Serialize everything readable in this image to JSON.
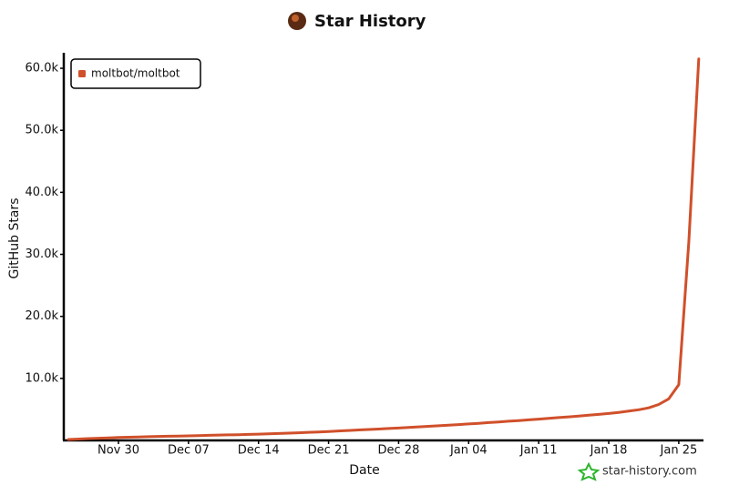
{
  "chart_data": {
    "type": "line",
    "title": "Star History",
    "watermark": "star-history.com",
    "x_label": "Date",
    "y_label": "GitHub Stars",
    "x": [
      "Nov 25",
      "Nov 26",
      "Nov 27",
      "Nov 28",
      "Nov 29",
      "Nov 30",
      "Dec 01",
      "Dec 02",
      "Dec 03",
      "Dec 04",
      "Dec 05",
      "Dec 06",
      "Dec 07",
      "Dec 08",
      "Dec 09",
      "Dec 10",
      "Dec 11",
      "Dec 12",
      "Dec 13",
      "Dec 14",
      "Dec 15",
      "Dec 16",
      "Dec 17",
      "Dec 18",
      "Dec 19",
      "Dec 20",
      "Dec 21",
      "Dec 22",
      "Dec 23",
      "Dec 24",
      "Dec 25",
      "Dec 26",
      "Dec 27",
      "Dec 28",
      "Dec 29",
      "Dec 30",
      "Dec 31",
      "Jan 01",
      "Jan 02",
      "Jan 03",
      "Jan 04",
      "Jan 05",
      "Jan 06",
      "Jan 07",
      "Jan 08",
      "Jan 09",
      "Jan 10",
      "Jan 11",
      "Jan 12",
      "Jan 13",
      "Jan 14",
      "Jan 15",
      "Jan 16",
      "Jan 17",
      "Jan 18",
      "Jan 19",
      "Jan 20",
      "Jan 21",
      "Jan 22",
      "Jan 23",
      "Jan 24",
      "Jan 25",
      "Jan 26",
      "Jan 27"
    ],
    "series": [
      {
        "name": "moltbot/moltbot",
        "color": "#d0502b",
        "values": [
          150,
          220,
          290,
          350,
          410,
          470,
          520,
          560,
          600,
          640,
          680,
          710,
          740,
          780,
          820,
          860,
          900,
          930,
          970,
          1010,
          1060,
          1110,
          1170,
          1230,
          1300,
          1370,
          1440,
          1520,
          1600,
          1680,
          1760,
          1840,
          1920,
          2000,
          2090,
          2180,
          2270,
          2360,
          2460,
          2560,
          2660,
          2760,
          2870,
          2980,
          3090,
          3200,
          3320,
          3440,
          3560,
          3680,
          3800,
          3930,
          4060,
          4200,
          4350,
          4520,
          4720,
          4950,
          5250,
          5800,
          6700,
          9000,
          32000,
          61500
        ]
      }
    ],
    "xticks": [
      "Nov 30",
      "Dec 07",
      "Dec 14",
      "Dec 21",
      "Dec 28",
      "Jan 04",
      "Jan 11",
      "Jan 18",
      "Jan 25"
    ],
    "ylim": [
      0,
      62500
    ],
    "yticks": [
      {
        "value": 10000,
        "label": "10.0k"
      },
      {
        "value": 20000,
        "label": "20.0k"
      },
      {
        "value": 30000,
        "label": "30.0k"
      },
      {
        "value": 40000,
        "label": "40.0k"
      },
      {
        "value": 50000,
        "label": "50.0k"
      },
      {
        "value": 60000,
        "label": "60.0k"
      }
    ],
    "legend": "top-left"
  }
}
